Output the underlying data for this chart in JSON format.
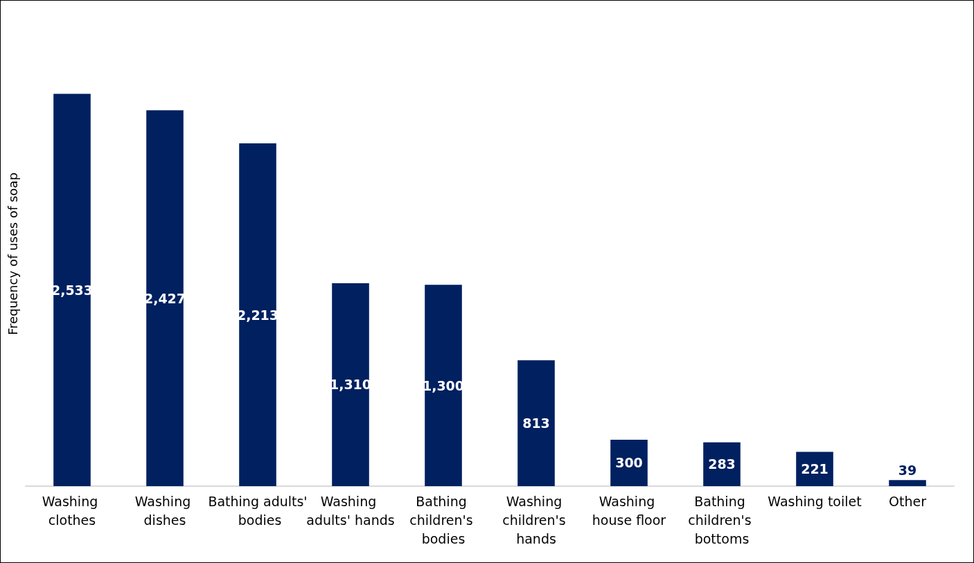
{
  "chart_data": {
    "type": "bar",
    "ylabel": "Frequency of uses of soap",
    "categories": [
      "Washing clothes",
      "Washing dishes",
      "Bathing adults' bodies",
      "Washing adults' hands",
      "Bathing children's bodies",
      "Washing children's hands",
      "Washing house floor",
      "Bathing children's bottoms",
      "Washing toilet",
      "Other"
    ],
    "values": [
      2533,
      2427,
      2213,
      1310,
      1300,
      813,
      300,
      283,
      221,
      39
    ],
    "value_labels": [
      "2,533",
      "2,427",
      "2,213",
      "1,310",
      "1,300",
      "813",
      "300",
      "283",
      "221",
      "39"
    ],
    "color": "#002060",
    "grid": false
  }
}
